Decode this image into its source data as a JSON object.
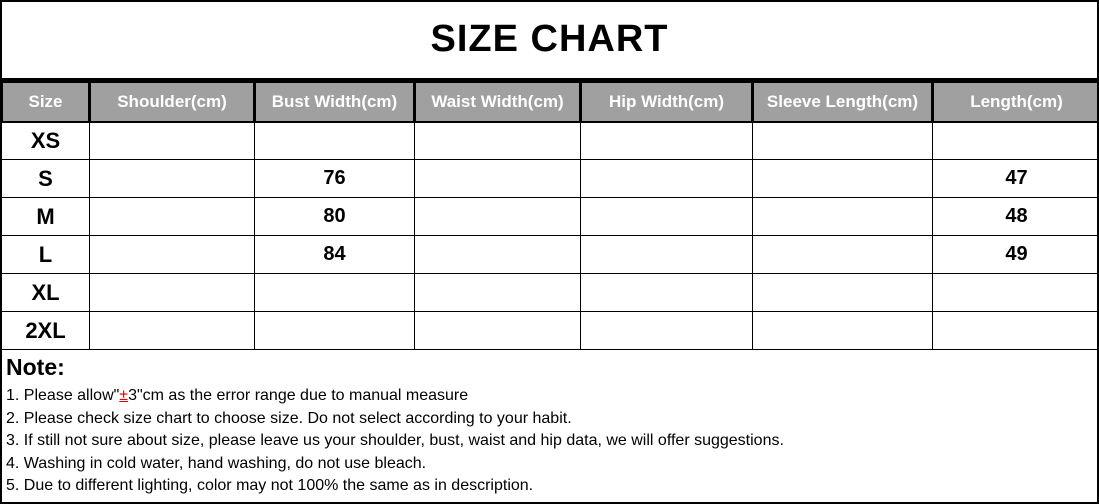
{
  "title": "SIZE CHART",
  "columns": [
    "Size",
    "Shoulder(cm)",
    "Bust Width(cm)",
    "Waist Width(cm)",
    "Hip Width(cm)",
    "Sleeve Length(cm)",
    "Length(cm)"
  ],
  "rows": [
    [
      "XS",
      "",
      "",
      "",
      "",
      "",
      ""
    ],
    [
      "S",
      "",
      "76",
      "",
      "",
      "",
      "47"
    ],
    [
      "M",
      "",
      "80",
      "",
      "",
      "",
      "48"
    ],
    [
      "L",
      "",
      "84",
      "",
      "",
      "",
      "49"
    ],
    [
      "XL",
      "",
      "",
      "",
      "",
      "",
      ""
    ],
    [
      "2XL",
      "",
      "",
      "",
      "",
      "",
      ""
    ]
  ],
  "note_title": "Note:",
  "note1": {
    "before": "1. Please allow\"",
    "highlight": "±",
    "after": "3\"cm as the error range due to manual measure"
  },
  "notes": [
    "2. Please check size chart to choose size. Do not select according to your habit.",
    "3. If still not sure about size, please leave us your shoulder, bust, waist and hip data, we will offer suggestions.",
    "4. Washing in cold water, hand washing, do not use bleach.",
    "5. Due to different lighting, color may not 100% the same as in description."
  ],
  "colors": {
    "header_bg": "#a0a0a0",
    "highlight": "#e00000"
  }
}
